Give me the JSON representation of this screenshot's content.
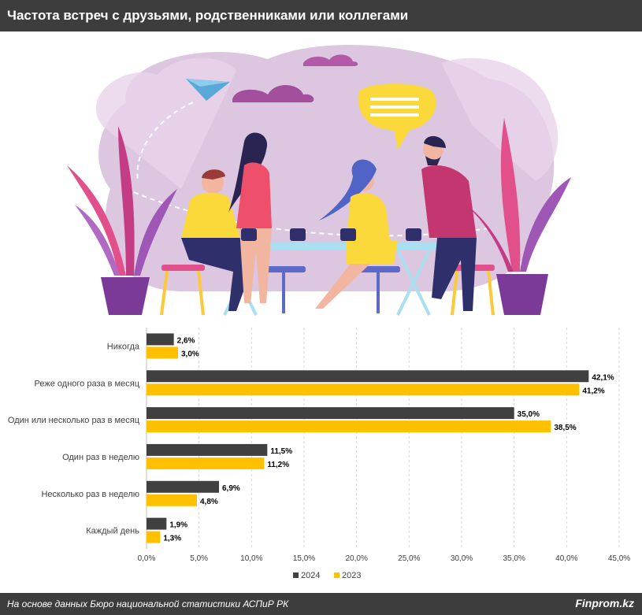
{
  "header": {
    "title": "Частота встреч с друзьями, родственниками или коллегами"
  },
  "footer": {
    "source": "На основе данных Бюро национальной статистики АСПиР РК",
    "brand": "Finprom.kz"
  },
  "colors": {
    "bar_2024": "#404040",
    "bar_2023": "#ffc000",
    "grid": "#d9d9d9"
  },
  "chart_data": {
    "type": "bar",
    "orientation": "horizontal",
    "categories": [
      "Никогда",
      "Реже одного раза в месяц",
      "Один или несколько раз в месяц",
      "Один раз в неделю",
      "Несколько раз в неделю",
      "Каждый день"
    ],
    "series": [
      {
        "name": "2024",
        "values": [
          2.6,
          42.1,
          35.0,
          11.5,
          6.9,
          1.9
        ],
        "labels": [
          "2,6%",
          "42,1%",
          "35,0%",
          "11,5%",
          "6,9%",
          "1,9%"
        ]
      },
      {
        "name": "2023",
        "values": [
          3.0,
          41.2,
          38.5,
          11.2,
          4.8,
          1.3
        ],
        "labels": [
          "3,0%",
          "41,2%",
          "38,5%",
          "11,2%",
          "4,8%",
          "1,3%"
        ]
      }
    ],
    "xlim": [
      0,
      45
    ],
    "ticks": [
      0,
      5,
      10,
      15,
      20,
      25,
      30,
      35,
      40,
      45
    ],
    "tick_labels": [
      "0,0%",
      "5,0%",
      "10,0%",
      "15,0%",
      "20,0%",
      "25,0%",
      "30,0%",
      "35,0%",
      "40,0%",
      "45,0%"
    ],
    "grid": true,
    "legend": "bottom"
  }
}
